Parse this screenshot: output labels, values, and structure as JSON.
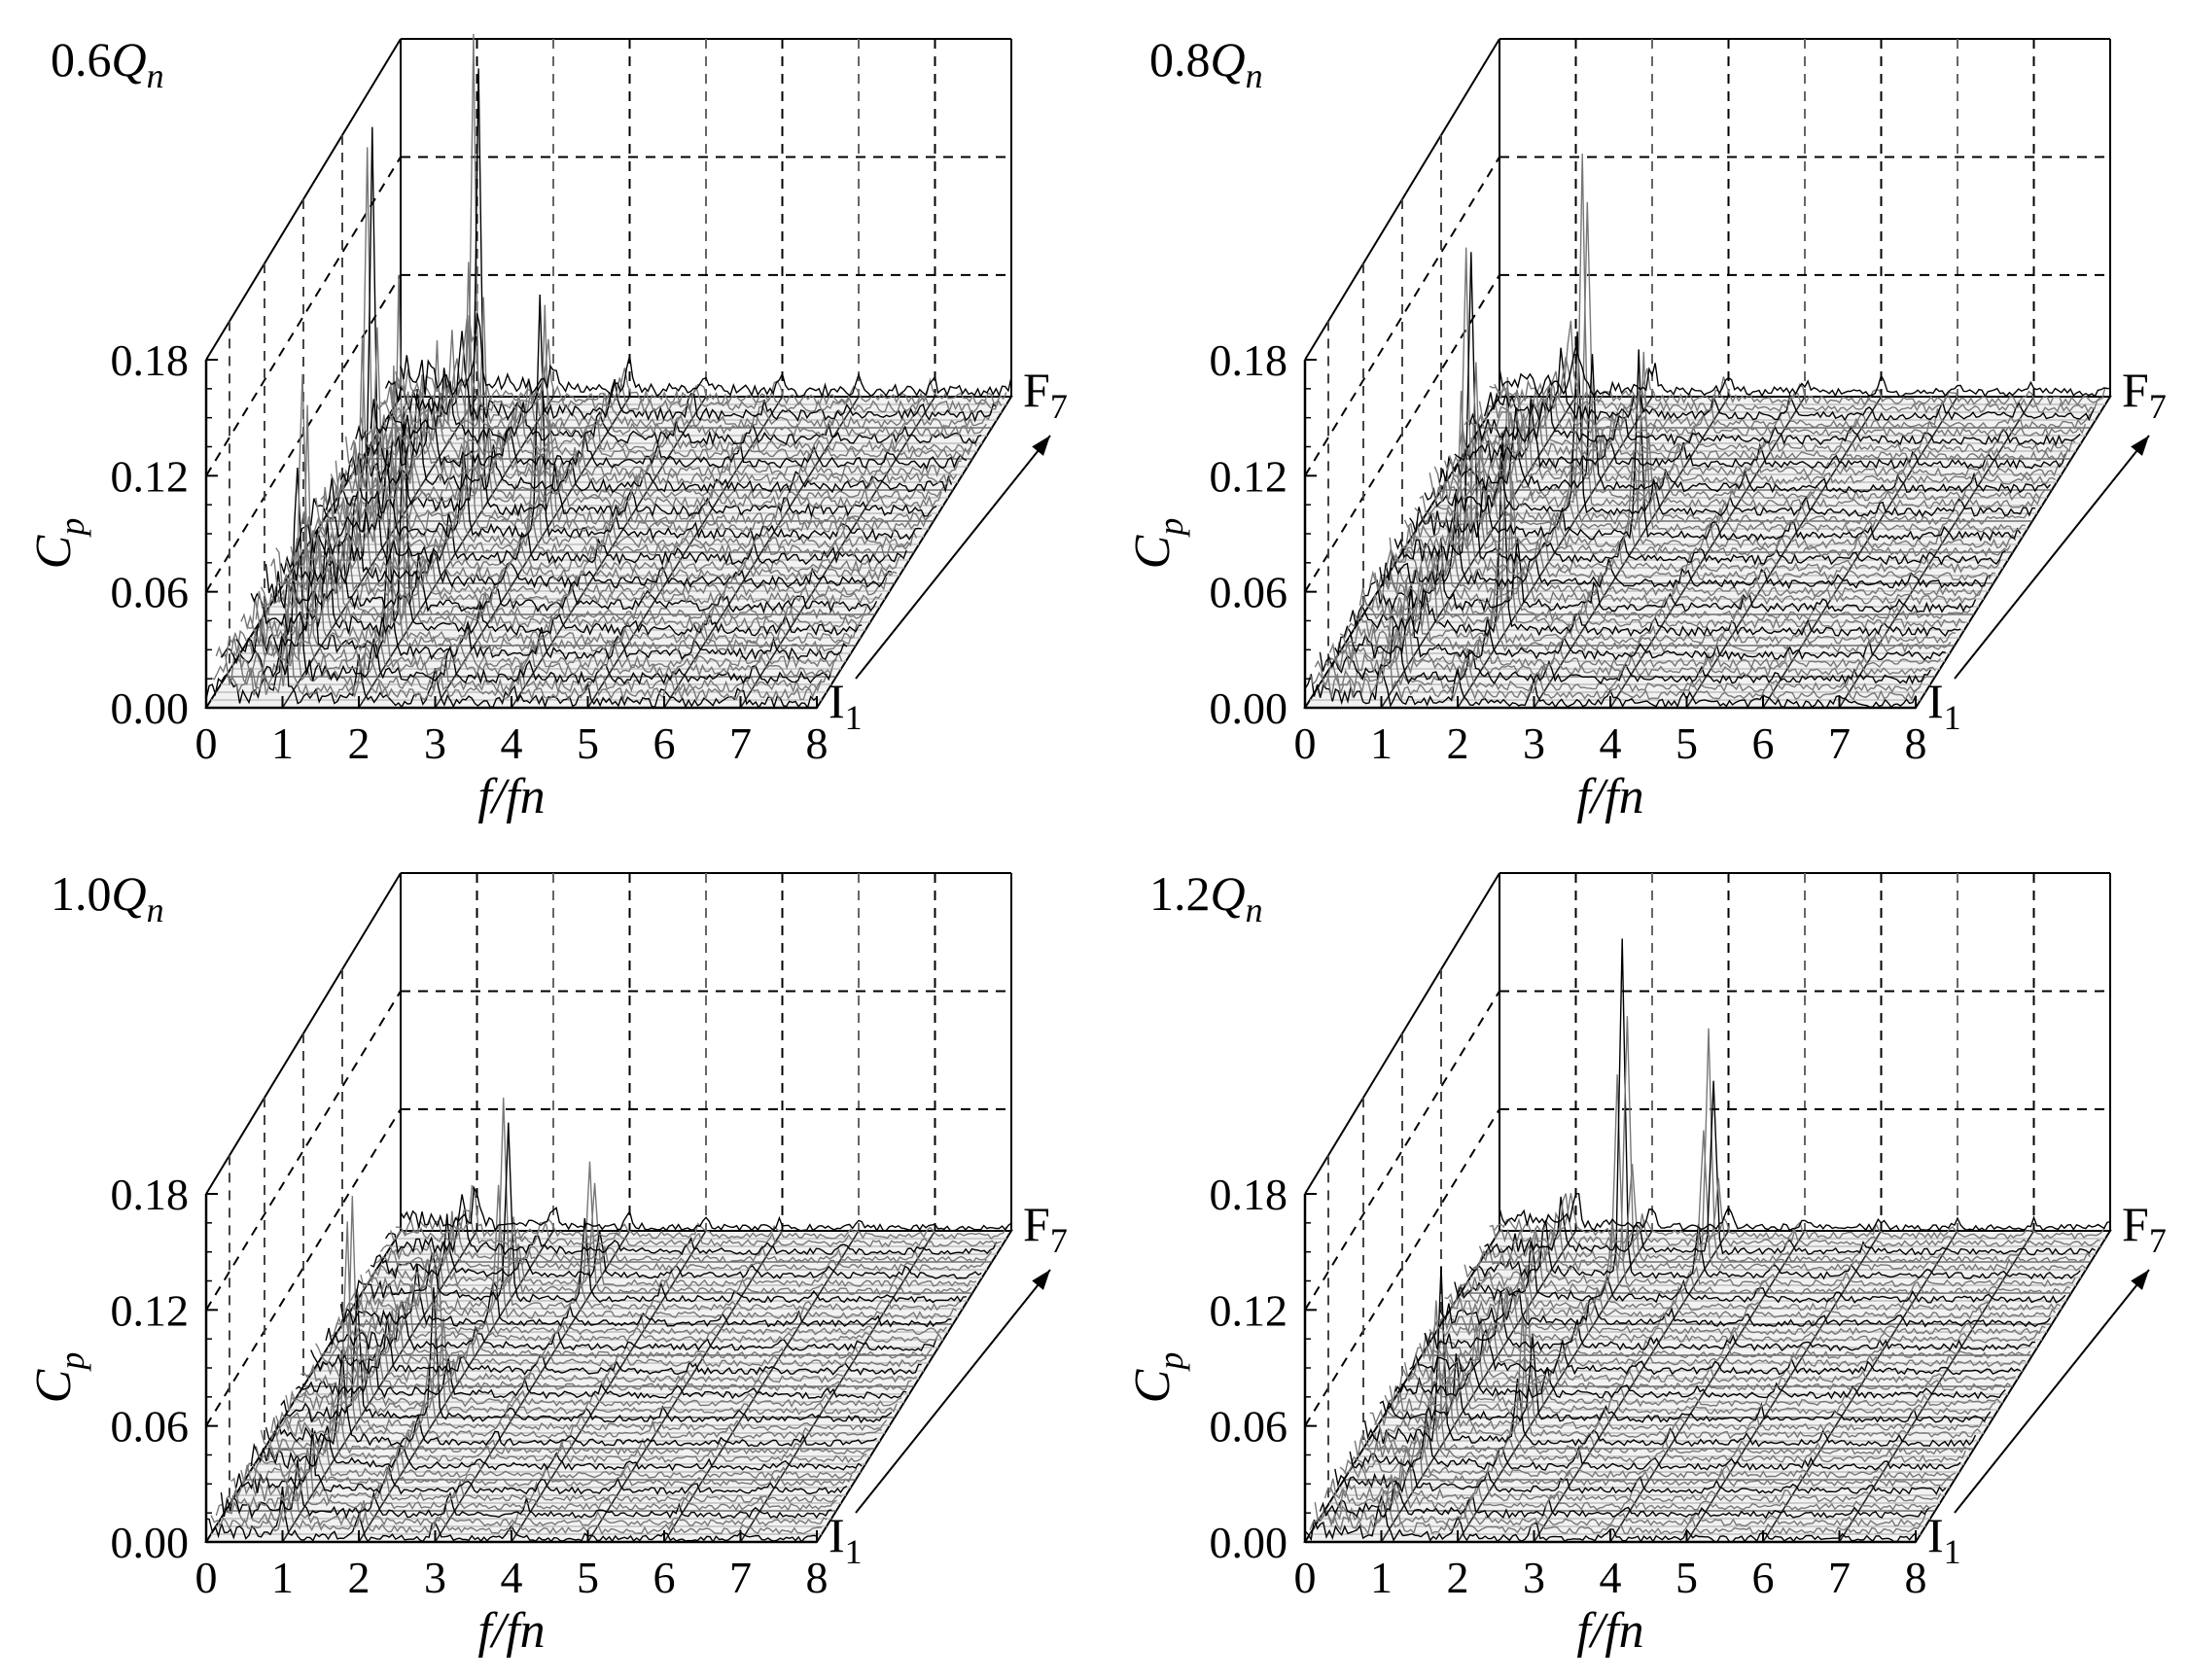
{
  "chart_data": [
    {
      "type": "waterfall-spectrum",
      "condition_prefix": "0.6",
      "condition_symbol": "Q",
      "condition_subscript": "n",
      "xlabel": "f/fn",
      "ylabel_symbol": "C",
      "ylabel_subscript": "p",
      "x_ticks": [
        "0",
        "1",
        "2",
        "3",
        "4",
        "5",
        "6",
        "7",
        "8"
      ],
      "y_ticks": [
        "0.00",
        "0.06",
        "0.12",
        "0.18"
      ],
      "xlim": [
        0,
        8
      ],
      "ylim": [
        0,
        0.18
      ],
      "z_start_label": "I",
      "z_start_sub": "1",
      "z_end_label": "F",
      "z_end_sub": "7",
      "peak_scale": 1.0,
      "dominant_peaks": [
        {
          "f": 1.0,
          "depth": 0.45,
          "cp": 0.21
        },
        {
          "f": 2.0,
          "depth": 0.6,
          "cp": 0.24
        },
        {
          "f": 2.0,
          "depth": 0.2,
          "cp": 0.17
        },
        {
          "f": 1.0,
          "depth": 0.1,
          "cp": 0.12
        },
        {
          "f": 3.0,
          "depth": 0.55,
          "cp": 0.12
        }
      ]
    },
    {
      "type": "waterfall-spectrum",
      "condition_prefix": "0.8",
      "condition_symbol": "Q",
      "condition_subscript": "n",
      "xlabel": "f/fn",
      "ylabel_symbol": "C",
      "ylabel_subscript": "p",
      "x_ticks": [
        "0",
        "1",
        "2",
        "3",
        "4",
        "5",
        "6",
        "7",
        "8"
      ],
      "y_ticks": [
        "0.00",
        "0.06",
        "0.12",
        "0.18"
      ],
      "xlim": [
        0,
        8
      ],
      "ylim": [
        0,
        0.18
      ],
      "z_start_label": "I",
      "z_start_sub": "1",
      "z_end_label": "F",
      "z_end_sub": "7",
      "peak_scale": 0.75,
      "dominant_peaks": [
        {
          "f": 1.0,
          "depth": 0.45,
          "cp": 0.15
        },
        {
          "f": 2.0,
          "depth": 0.65,
          "cp": 0.17
        },
        {
          "f": 2.0,
          "depth": 0.25,
          "cp": 0.11
        },
        {
          "f": 3.0,
          "depth": 0.55,
          "cp": 0.09
        }
      ]
    },
    {
      "type": "waterfall-spectrum",
      "condition_prefix": "1.0",
      "condition_symbol": "Q",
      "condition_subscript": "n",
      "xlabel": "f/fn",
      "ylabel_symbol": "C",
      "ylabel_subscript": "p",
      "x_ticks": [
        "0",
        "1",
        "2",
        "3",
        "4",
        "5",
        "6",
        "7",
        "8"
      ],
      "y_ticks": [
        "0.00",
        "0.06",
        "0.12",
        "0.18"
      ],
      "xlim": [
        0,
        8
      ],
      "ylim": [
        0,
        0.18
      ],
      "z_start_label": "I",
      "z_start_sub": "1",
      "z_end_label": "F",
      "z_end_sub": "7",
      "peak_scale": 0.55,
      "dominant_peaks": [
        {
          "f": 1.0,
          "depth": 0.35,
          "cp": 0.1
        },
        {
          "f": 2.0,
          "depth": 0.75,
          "cp": 0.1
        },
        {
          "f": 2.0,
          "depth": 0.4,
          "cp": 0.07
        },
        {
          "f": 3.0,
          "depth": 0.8,
          "cp": 0.06
        }
      ]
    },
    {
      "type": "waterfall-spectrum",
      "condition_prefix": "1.2",
      "condition_symbol": "Q",
      "condition_subscript": "n",
      "xlabel": "f/fn",
      "ylabel_symbol": "C",
      "ylabel_subscript": "p",
      "x_ticks": [
        "0",
        "1",
        "2",
        "3",
        "4",
        "5",
        "6",
        "7",
        "8"
      ],
      "y_ticks": [
        "0.00",
        "0.06",
        "0.12",
        "0.18"
      ],
      "xlim": [
        0,
        8
      ],
      "ylim": [
        0,
        0.18
      ],
      "z_start_label": "I",
      "z_start_sub": "1",
      "z_end_label": "F",
      "z_end_sub": "7",
      "peak_scale": 0.55,
      "dominant_peaks": [
        {
          "f": 2.0,
          "depth": 0.85,
          "cp": 0.16
        },
        {
          "f": 3.0,
          "depth": 0.9,
          "cp": 0.11
        },
        {
          "f": 1.0,
          "depth": 0.3,
          "cp": 0.07
        },
        {
          "f": 2.0,
          "depth": 0.35,
          "cp": 0.06
        }
      ]
    }
  ]
}
